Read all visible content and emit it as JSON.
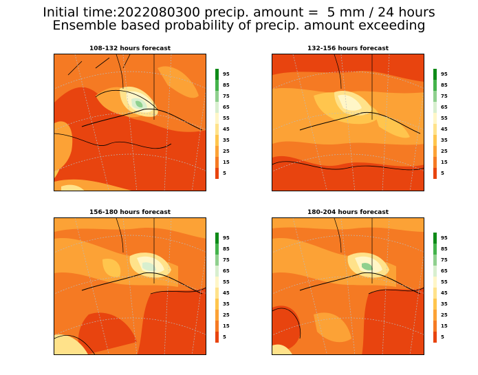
{
  "header": {
    "title_line1": "Initial time:2022080300 precip. amount =  5 mm / 24 hours",
    "title_line2": "Ensemble based probability of precip. amount exceeding"
  },
  "panels": [
    {
      "title": "108-132 hours forecast"
    },
    {
      "title": "132-156 hours forecast"
    },
    {
      "title": "156-180 hours forecast"
    },
    {
      "title": "180-204 hours forecast"
    }
  ],
  "colorbar": {
    "levels": [
      "95",
      "85",
      "75",
      "65",
      "55",
      "45",
      "35",
      "25",
      "15",
      "5"
    ],
    "colors": [
      "#0e8a18",
      "#44b34b",
      "#8fd08e",
      "#d8efcf",
      "#fff6c7",
      "#ffe28a",
      "#ffc54d",
      "#fca236",
      "#f57a23",
      "#e8440f"
    ]
  }
}
